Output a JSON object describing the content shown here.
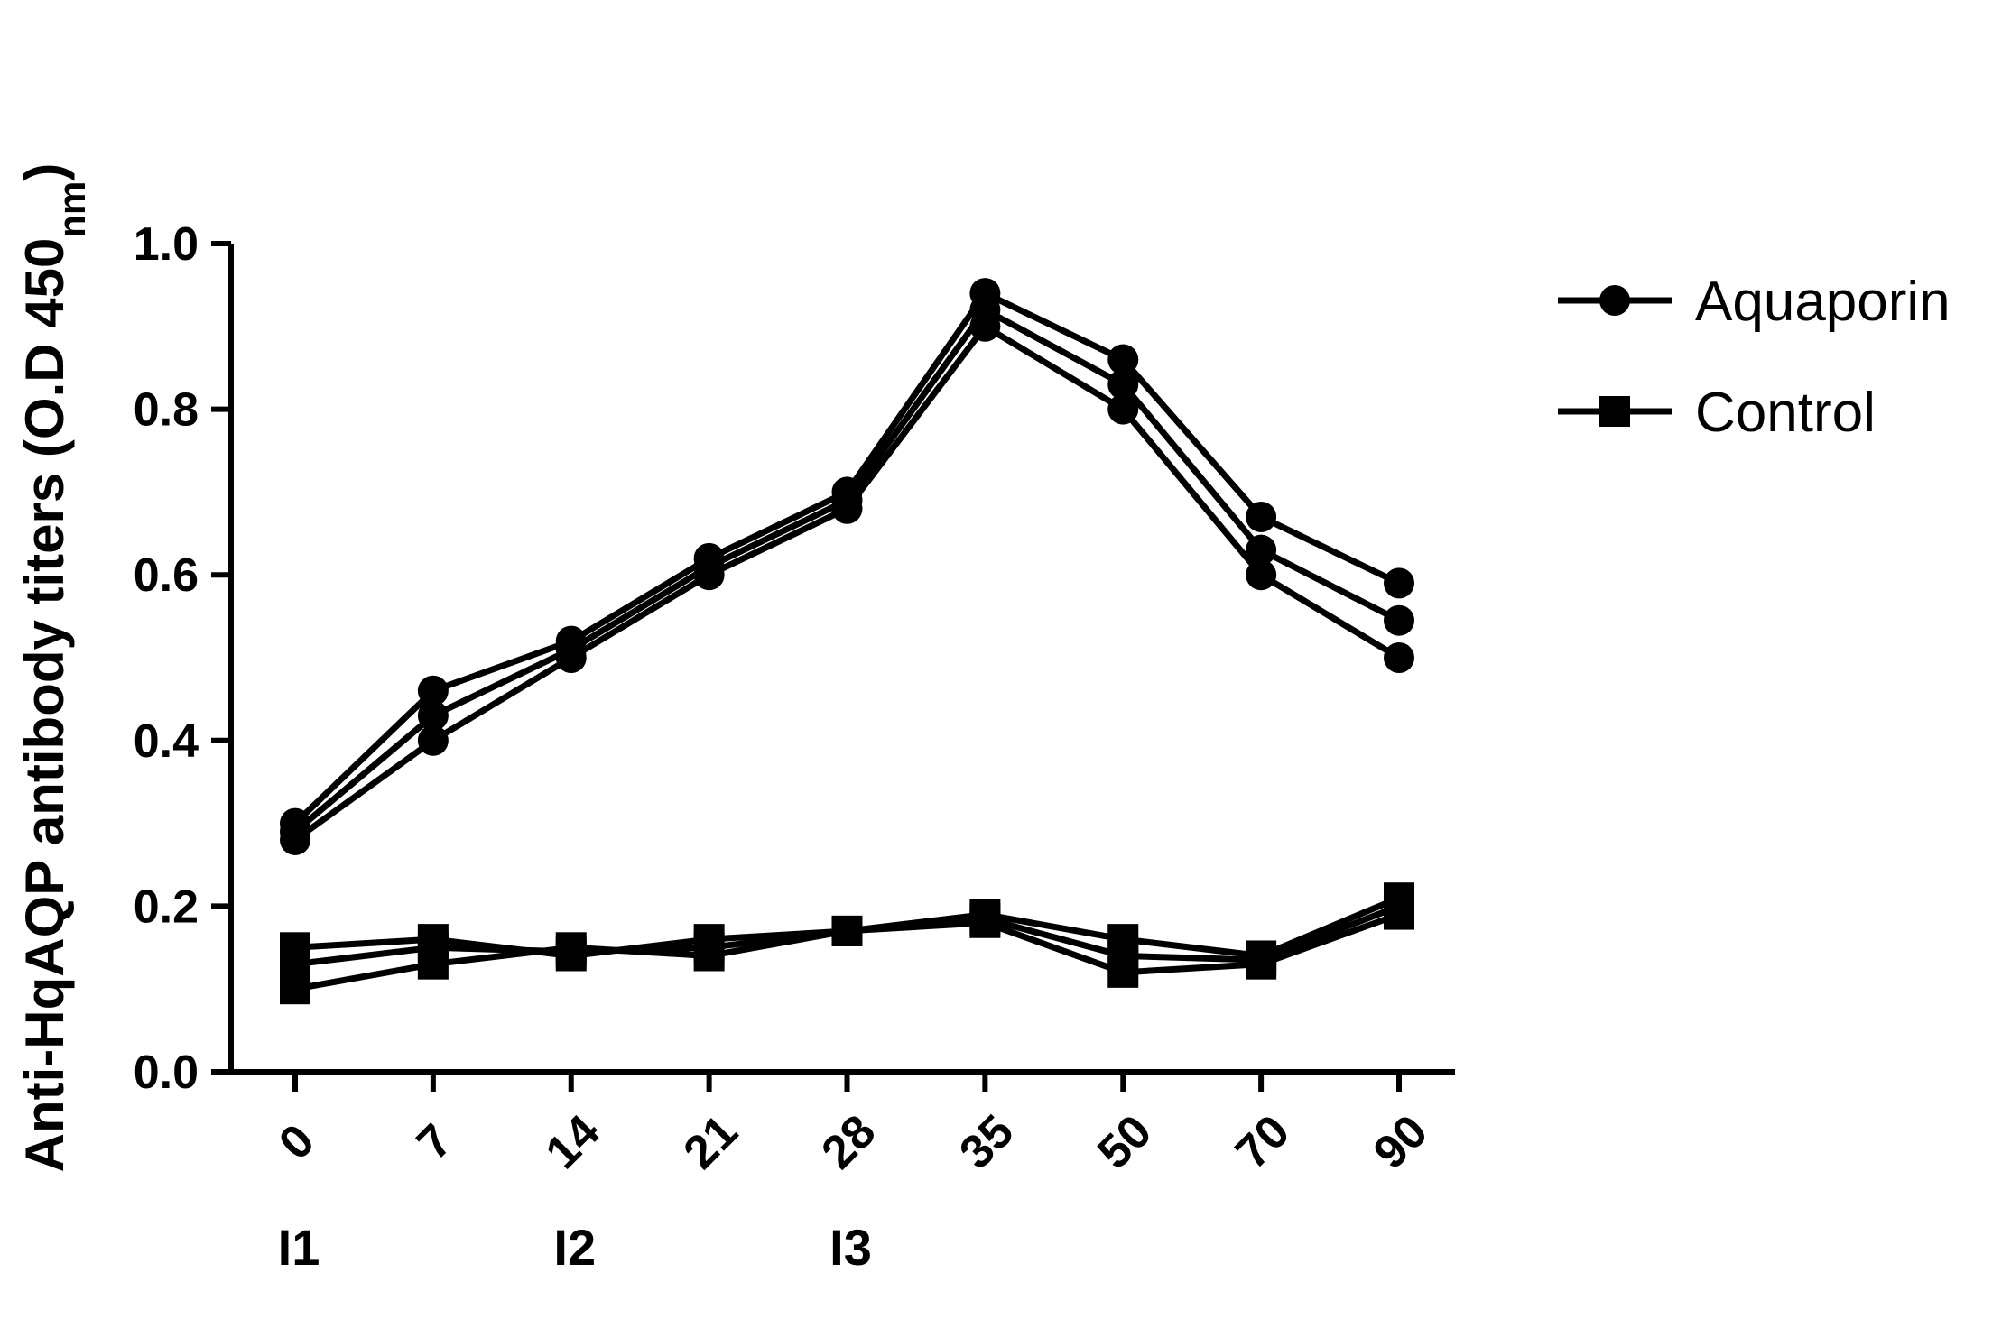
{
  "chart_data": {
    "type": "line",
    "ylabel": "Anti-HqAQP antibody titers (O.D 450",
    "ylabel_subscript": "nm",
    "ylabel_suffix": ")",
    "ylim": [
      0.0,
      1.0
    ],
    "yticks": [
      0.0,
      0.2,
      0.4,
      0.6,
      0.8,
      1.0
    ],
    "ytick_labels": [
      "0.0",
      "0.2",
      "0.4",
      "0.6",
      "0.8",
      "1.0"
    ],
    "categories": [
      "0",
      "7",
      "14",
      "21",
      "28",
      "35",
      "50",
      "70",
      "90"
    ],
    "annotations": [
      {
        "category": "0",
        "text": "I1"
      },
      {
        "category": "14",
        "text": "I2"
      },
      {
        "category": "28",
        "text": "I3"
      }
    ],
    "legend_position": "right",
    "grid": false,
    "groups": [
      {
        "label": "Aquaporin",
        "marker": "circle",
        "color": "#000000",
        "replicates": [
          [
            0.3,
            0.46,
            0.52,
            0.62,
            0.7,
            0.94,
            0.86,
            0.67,
            0.59
          ],
          [
            0.29,
            0.43,
            0.51,
            0.61,
            0.69,
            0.92,
            0.83,
            0.63,
            0.545
          ],
          [
            0.28,
            0.4,
            0.5,
            0.6,
            0.68,
            0.9,
            0.8,
            0.6,
            0.5
          ]
        ]
      },
      {
        "label": "Control",
        "marker": "square",
        "color": "#000000",
        "replicates": [
          [
            0.15,
            0.16,
            0.14,
            0.16,
            0.17,
            0.19,
            0.16,
            0.14,
            0.21
          ],
          [
            0.13,
            0.15,
            0.145,
            0.15,
            0.17,
            0.185,
            0.14,
            0.135,
            0.2
          ],
          [
            0.1,
            0.13,
            0.15,
            0.14,
            0.17,
            0.18,
            0.12,
            0.13,
            0.19
          ]
        ]
      }
    ]
  }
}
